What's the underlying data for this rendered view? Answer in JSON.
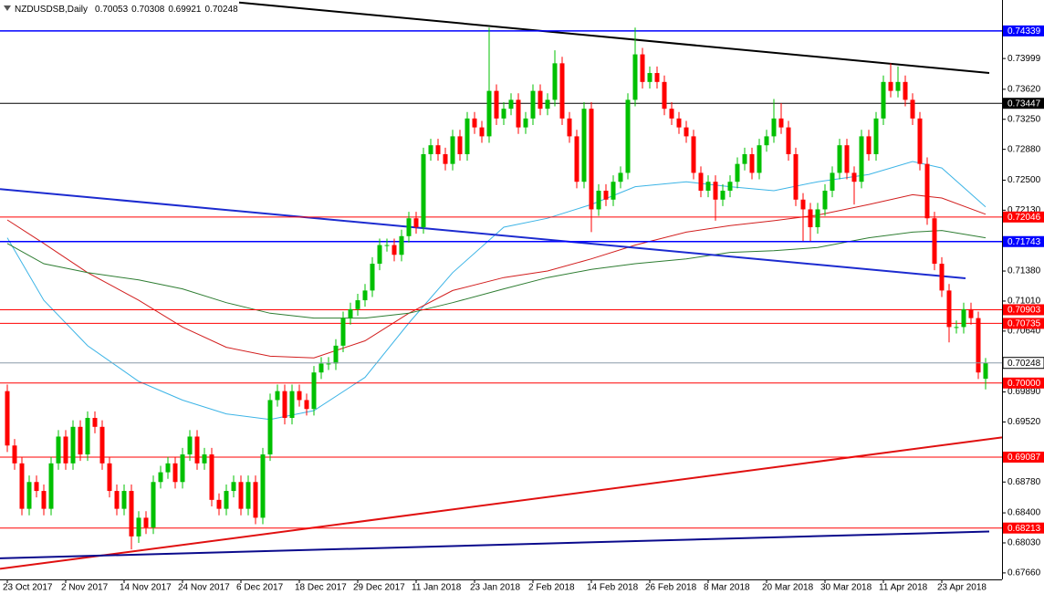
{
  "chart_data": {
    "type": "candlestick",
    "title": "NZDUSDSB,Daily",
    "up_color": "#00c000",
    "down_color": "#ff0000",
    "ylim": [
      0.6758,
      0.7472
    ],
    "yticks": [
      0.73999,
      {
        "value": 0.7362,
        "label": "0.73620"
      },
      {
        "value": 0.7325,
        "label": "0.73250"
      },
      {
        "value": 0.7288,
        "label": "0.72880"
      },
      {
        "value": 0.725,
        "label": "0.72500"
      },
      {
        "value": 0.7213,
        "label": "0.72130"
      },
      {
        "value": 0.7138,
        "label": "0.71380"
      },
      {
        "value": 0.7101,
        "label": "0.71010"
      },
      {
        "value": 0.7064,
        "label": "0.70640"
      },
      {
        "value": 0.6989,
        "label": "0.69890"
      },
      {
        "value": 0.6952,
        "label": "0.69520"
      },
      {
        "value": 0.6878,
        "label": "0.68780"
      },
      {
        "value": 0.684,
        "label": "0.68400"
      },
      {
        "value": 0.6803,
        "label": "0.68030"
      },
      {
        "value": 0.6766,
        "label": "0.67660"
      }
    ],
    "levels": [
      {
        "value": 0.74339,
        "color": "#0000ff"
      },
      {
        "value": 0.73447,
        "color": "#000000"
      },
      {
        "value": 0.72046,
        "color": "#ff0000"
      },
      {
        "value": 0.71743,
        "color": "#0000ff"
      },
      {
        "value": 0.70903,
        "color": "#ff0000"
      },
      {
        "value": 0.70735,
        "color": "#ff0000"
      },
      {
        "value": {
          "value": 0.7,
          "label": "0.70000"
        },
        "color": "#ff0000"
      },
      {
        "value": 0.69087,
        "color": "#ff0000"
      },
      {
        "value": 0.68213,
        "color": "#ff0000"
      }
    ],
    "categories": [
      "23 Oct 2017",
      null,
      null,
      null,
      null,
      null,
      null,
      null,
      "2 Nov 2017",
      null,
      null,
      null,
      null,
      null,
      null,
      null,
      "14 Nov 2017",
      null,
      null,
      null,
      null,
      null,
      null,
      null,
      "24 Nov 2017",
      null,
      null,
      null,
      null,
      null,
      null,
      null,
      "6 Dec 2017",
      null,
      null,
      null,
      null,
      null,
      null,
      null,
      "18 Dec 2017",
      null,
      null,
      null,
      null,
      null,
      null,
      null,
      "29 Dec 2017",
      null,
      null,
      null,
      null,
      null,
      null,
      null,
      "11 Jan 2018",
      null,
      null,
      null,
      null,
      null,
      null,
      null,
      "23 Jan 2018",
      null,
      null,
      null,
      null,
      null,
      null,
      null,
      "2 Feb 2018",
      null,
      null,
      null,
      null,
      null,
      null,
      null,
      "14 Feb 2018",
      null,
      null,
      null,
      null,
      null,
      null,
      null,
      "26 Feb 2018",
      null,
      null,
      null,
      null,
      null,
      null,
      null,
      "8 Mar 2018",
      null,
      null,
      null,
      null,
      null,
      null,
      null,
      "20 Mar 2018",
      null,
      null,
      null,
      null,
      null,
      null,
      null,
      "30 Mar 2018",
      null,
      null,
      null,
      null,
      null,
      null,
      null,
      "11 Apr 2018",
      null,
      null,
      null,
      null,
      null,
      null,
      null,
      "23 Apr 2018",
      null,
      null,
      null,
      null,
      null,
      null
    ],
    "open": [
      0.699,
      0.6923,
      0.6901,
      0.6845,
      0.6878,
      0.6867,
      0.6845,
      0.6901,
      0.6934,
      0.6901,
      0.6946,
      0.6912,
      0.6957,
      0.6946,
      0.6901,
      0.6867,
      0.6845,
      0.6867,
      0.6811,
      0.6834,
      0.6822,
      0.6878,
      0.689,
      0.6901,
      0.6878,
      0.6912,
      0.6934,
      0.6901,
      0.6912,
      0.6856,
      0.6845,
      0.6867,
      0.6878,
      0.6845,
      0.6878,
      0.6834,
      0.6912,
      0.6979,
      0.699,
      0.6957,
      0.699,
      0.6979,
      0.6968,
      0.7013,
      0.7024,
      0.7024,
      0.7046,
      0.708,
      0.7091,
      0.7102,
      0.7114,
      0.7147,
      0.717,
      0.717,
      0.7158,
      0.7181,
      0.7203,
      0.7192,
      0.7282,
      0.7293,
      0.7282,
      0.727,
      0.7304,
      0.7282,
      0.7326,
      0.7315,
      0.7304,
      0.736,
      0.7326,
      0.7338,
      0.7349,
      0.7315,
      0.7326,
      0.736,
      0.7338,
      0.7349,
      0.7394,
      0.7326,
      0.7304,
      0.7248,
      0.7338,
      0.7214,
      0.7237,
      0.7226,
      0.7248,
      0.7259,
      0.7349,
      0.7405,
      0.7371,
      0.7382,
      0.7371,
      0.7338,
      0.7326,
      0.7315,
      0.7304,
      0.7259,
      0.7237,
      0.7248,
      0.7226,
      0.7237,
      0.7248,
      0.727,
      0.7282,
      0.7259,
      0.7293,
      0.7304,
      0.7326,
      0.7315,
      0.7282,
      0.7226,
      0.7214,
      0.7192,
      0.7214,
      0.7237,
      0.7259,
      0.7293,
      0.7259,
      0.7248,
      0.7304,
      0.7282,
      0.7326,
      0.7371,
      0.736,
      0.7371,
      0.7349,
      0.7326,
      0.727,
      0.7203,
      0.7147,
      0.7114,
      0.7069,
      0.7069,
      0.7091,
      0.708,
      0.70053
    ],
    "high": [
      0.6998,
      0.6931,
      0.6909,
      0.6886,
      0.6886,
      0.6875,
      0.6909,
      0.6942,
      0.6942,
      0.6954,
      0.6954,
      0.6965,
      0.6965,
      0.6954,
      0.6909,
      0.6875,
      0.6875,
      0.6875,
      0.6842,
      0.6842,
      0.6886,
      0.6898,
      0.6909,
      0.6909,
      0.692,
      0.6942,
      0.6942,
      0.692,
      0.692,
      0.6864,
      0.6875,
      0.6886,
      0.6886,
      0.6886,
      0.6886,
      0.692,
      0.6987,
      0.6998,
      0.6998,
      0.6998,
      0.6998,
      0.6987,
      0.7021,
      0.7032,
      0.7032,
      0.7054,
      0.7088,
      0.7099,
      0.711,
      0.7122,
      0.7155,
      0.7178,
      0.7178,
      0.7178,
      0.7189,
      0.7211,
      0.7211,
      0.729,
      0.7301,
      0.7301,
      0.729,
      0.7312,
      0.7312,
      0.7334,
      0.7334,
      0.7323,
      0.7438,
      0.7368,
      0.7346,
      0.7357,
      0.7357,
      0.7334,
      0.7368,
      0.7368,
      0.7357,
      0.741,
      0.7402,
      0.7334,
      0.7312,
      0.7346,
      0.7346,
      0.7245,
      0.7245,
      0.7256,
      0.7267,
      0.7357,
      0.7438,
      0.7413,
      0.739,
      0.739,
      0.7379,
      0.7346,
      0.7334,
      0.7323,
      0.7312,
      0.7267,
      0.7256,
      0.7256,
      0.7245,
      0.7256,
      0.7278,
      0.729,
      0.729,
      0.7301,
      0.7312,
      0.735,
      0.7345,
      0.7323,
      0.729,
      0.7234,
      0.7222,
      0.7222,
      0.7245,
      0.7267,
      0.7301,
      0.7301,
      0.7267,
      0.7312,
      0.7312,
      0.7334,
      0.7379,
      0.7394,
      0.739,
      0.7379,
      0.7357,
      0.7334,
      0.7278,
      0.7211,
      0.7155,
      0.7122,
      0.7077,
      0.7099,
      0.7099,
      0.7088,
      0.70308
    ],
    "low": [
      0.6915,
      0.6893,
      0.6837,
      0.6837,
      0.6859,
      0.6837,
      0.6837,
      0.6893,
      0.6893,
      0.6893,
      0.6904,
      0.6904,
      0.6938,
      0.6893,
      0.6859,
      0.6837,
      0.6837,
      0.6795,
      0.6803,
      0.6814,
      0.6814,
      0.687,
      0.6882,
      0.687,
      0.687,
      0.6904,
      0.6893,
      0.6893,
      0.6848,
      0.6837,
      0.6837,
      0.6859,
      0.6837,
      0.6837,
      0.6826,
      0.6826,
      0.6904,
      0.6971,
      0.6949,
      0.6949,
      0.6971,
      0.696,
      0.696,
      0.7005,
      0.7016,
      0.7016,
      0.7038,
      0.7072,
      0.7083,
      0.7094,
      0.7106,
      0.7139,
      0.7162,
      0.715,
      0.715,
      0.7173,
      0.7184,
      0.7184,
      0.7274,
      0.7274,
      0.7262,
      0.7262,
      0.7274,
      0.7274,
      0.7307,
      0.7296,
      0.7296,
      0.7318,
      0.7318,
      0.733,
      0.7307,
      0.7307,
      0.7318,
      0.733,
      0.733,
      0.7341,
      0.7318,
      0.7296,
      0.724,
      0.724,
      0.7186,
      0.7206,
      0.7218,
      0.7218,
      0.724,
      0.7251,
      0.7341,
      0.7363,
      0.7363,
      0.7363,
      0.733,
      0.7318,
      0.7307,
      0.7296,
      0.7251,
      0.7229,
      0.7229,
      0.72,
      0.7218,
      0.7229,
      0.724,
      0.7262,
      0.7251,
      0.7251,
      0.7285,
      0.7296,
      0.7307,
      0.7274,
      0.7218,
      0.7175,
      0.7175,
      0.7184,
      0.7206,
      0.7229,
      0.7251,
      0.7251,
      0.722,
      0.724,
      0.7274,
      0.7274,
      0.7318,
      0.7352,
      0.7352,
      0.7341,
      0.7318,
      0.7262,
      0.7195,
      0.7139,
      0.7106,
      0.705,
      0.7061,
      0.7061,
      0.7072,
      0.7005,
      0.69921
    ],
    "close": [
      0.6923,
      0.6901,
      0.6845,
      0.6878,
      0.6867,
      0.6845,
      0.6901,
      0.6934,
      0.6901,
      0.6946,
      0.6912,
      0.6957,
      0.6946,
      0.6901,
      0.6867,
      0.6845,
      0.6867,
      0.6811,
      0.6834,
      0.6822,
      0.6878,
      0.689,
      0.6901,
      0.6878,
      0.6912,
      0.6934,
      0.6901,
      0.6912,
      0.6856,
      0.6845,
      0.6867,
      0.6878,
      0.6845,
      0.6878,
      0.6834,
      0.6912,
      0.6979,
      0.699,
      0.6957,
      0.699,
      0.6979,
      0.6968,
      0.7013,
      0.7024,
      0.7024,
      0.7046,
      0.708,
      0.7091,
      0.7102,
      0.7114,
      0.7147,
      0.717,
      0.717,
      0.7158,
      0.7181,
      0.7203,
      0.7192,
      0.7282,
      0.7293,
      0.7282,
      0.727,
      0.7304,
      0.7282,
      0.7326,
      0.7315,
      0.7304,
      0.736,
      0.7326,
      0.7338,
      0.7349,
      0.7315,
      0.7326,
      0.736,
      0.7338,
      0.7349,
      0.7394,
      0.7326,
      0.7304,
      0.7248,
      0.7338,
      0.7214,
      0.7237,
      0.7226,
      0.7248,
      0.7259,
      0.7349,
      0.7405,
      0.7371,
      0.7382,
      0.7371,
      0.7338,
      0.7326,
      0.7315,
      0.7304,
      0.7259,
      0.7237,
      0.7248,
      0.7226,
      0.7237,
      0.7248,
      0.727,
      0.7282,
      0.7259,
      0.7293,
      0.7304,
      0.7326,
      0.7315,
      0.7282,
      0.7226,
      0.7214,
      0.7192,
      0.7214,
      0.7237,
      0.7259,
      0.7293,
      0.7259,
      0.7248,
      0.7304,
      0.7282,
      0.7326,
      0.7371,
      0.736,
      0.7371,
      0.7349,
      0.7326,
      0.727,
      0.7203,
      0.7147,
      0.7114,
      0.7069,
      0.7069,
      0.7091,
      0.708,
      0.7013,
      0.70248
    ],
    "moving_averages": [
      {
        "color": "#3cb4e6",
        "x": [
          0,
          5,
          11,
          18,
          24,
          30,
          36,
          42,
          49,
          55,
          61,
          68,
          74,
          80,
          86,
          93,
          99,
          105,
          111,
          118,
          124,
          128,
          134
        ],
        "values": [
          0.7179,
          0.7102,
          0.7046,
          0.7002,
          0.6979,
          0.6962,
          0.6955,
          0.6966,
          0.7007,
          0.7074,
          0.7136,
          0.7192,
          0.7203,
          0.722,
          0.7242,
          0.7248,
          0.7242,
          0.7237,
          0.7248,
          0.7257,
          0.7273,
          0.7265,
          0.7217
        ]
      },
      {
        "color": "#d21e1e",
        "x": [
          0,
          5,
          11,
          18,
          24,
          30,
          36,
          42,
          49,
          55,
          61,
          68,
          74,
          80,
          86,
          93,
          99,
          105,
          111,
          118,
          124,
          128,
          134
        ],
        "values": [
          0.7201,
          0.7172,
          0.7136,
          0.7102,
          0.7069,
          0.7044,
          0.7033,
          0.7031,
          0.7052,
          0.7086,
          0.7114,
          0.713,
          0.7138,
          0.7153,
          0.717,
          0.7186,
          0.7194,
          0.72,
          0.7207,
          0.722,
          0.7232,
          0.7228,
          0.7208
        ]
      },
      {
        "color": "#2e7d32",
        "x": [
          0,
          5,
          11,
          18,
          24,
          30,
          36,
          42,
          49,
          55,
          61,
          68,
          74,
          80,
          86,
          93,
          99,
          105,
          111,
          118,
          124,
          128,
          134
        ],
        "values": [
          0.7172,
          0.7147,
          0.7136,
          0.7127,
          0.7116,
          0.7099,
          0.7086,
          0.708,
          0.708,
          0.7086,
          0.7099,
          0.7116,
          0.713,
          0.714,
          0.7147,
          0.7153,
          0.7161,
          0.7163,
          0.7167,
          0.7179,
          0.7186,
          0.7188,
          0.7179
        ]
      }
    ],
    "trendlines": [
      {
        "color": "#000000",
        "x": [
          31.75,
          134.5
        ],
        "values": [
          0.7469,
          0.7382
        ]
      },
      {
        "color": "#1c2bd0",
        "x": [
          -1,
          131.25
        ],
        "values": [
          0.7239,
          0.7129
        ]
      },
      {
        "color": "#e01010",
        "x": [
          -1,
          136.25
        ],
        "values": [
          0.6771,
          0.6933
        ]
      },
      {
        "color": "#0a0a8c",
        "x": [
          -1,
          134.5
        ],
        "values": [
          0.6784,
          0.6817
        ]
      }
    ]
  }
}
